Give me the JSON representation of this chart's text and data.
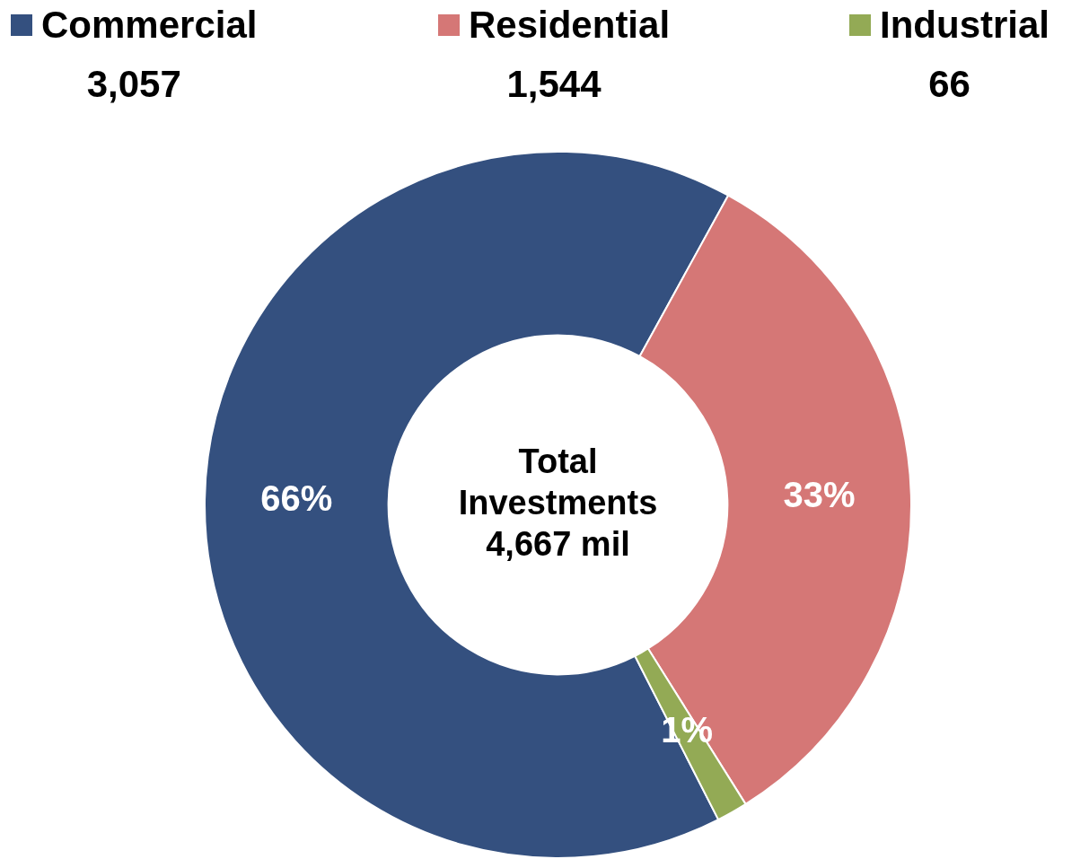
{
  "chart_data": {
    "type": "donut",
    "categories": [
      "Commercial",
      "Residential",
      "Industrial"
    ],
    "values": [
      3057,
      1544,
      66
    ],
    "colors": [
      "#34507f",
      "#d57776",
      "#93aa55"
    ],
    "value_labels": [
      "3,057",
      "1,544",
      "66"
    ],
    "legend": "top",
    "annotations": [
      "Total Investments 4,667 mil",
      {
        "text": "66%",
        "x": "Commercial"
      },
      {
        "text": "33%",
        "x": "Residential"
      },
      {
        "text": "1%",
        "x": "Industrial"
      }
    ]
  }
}
